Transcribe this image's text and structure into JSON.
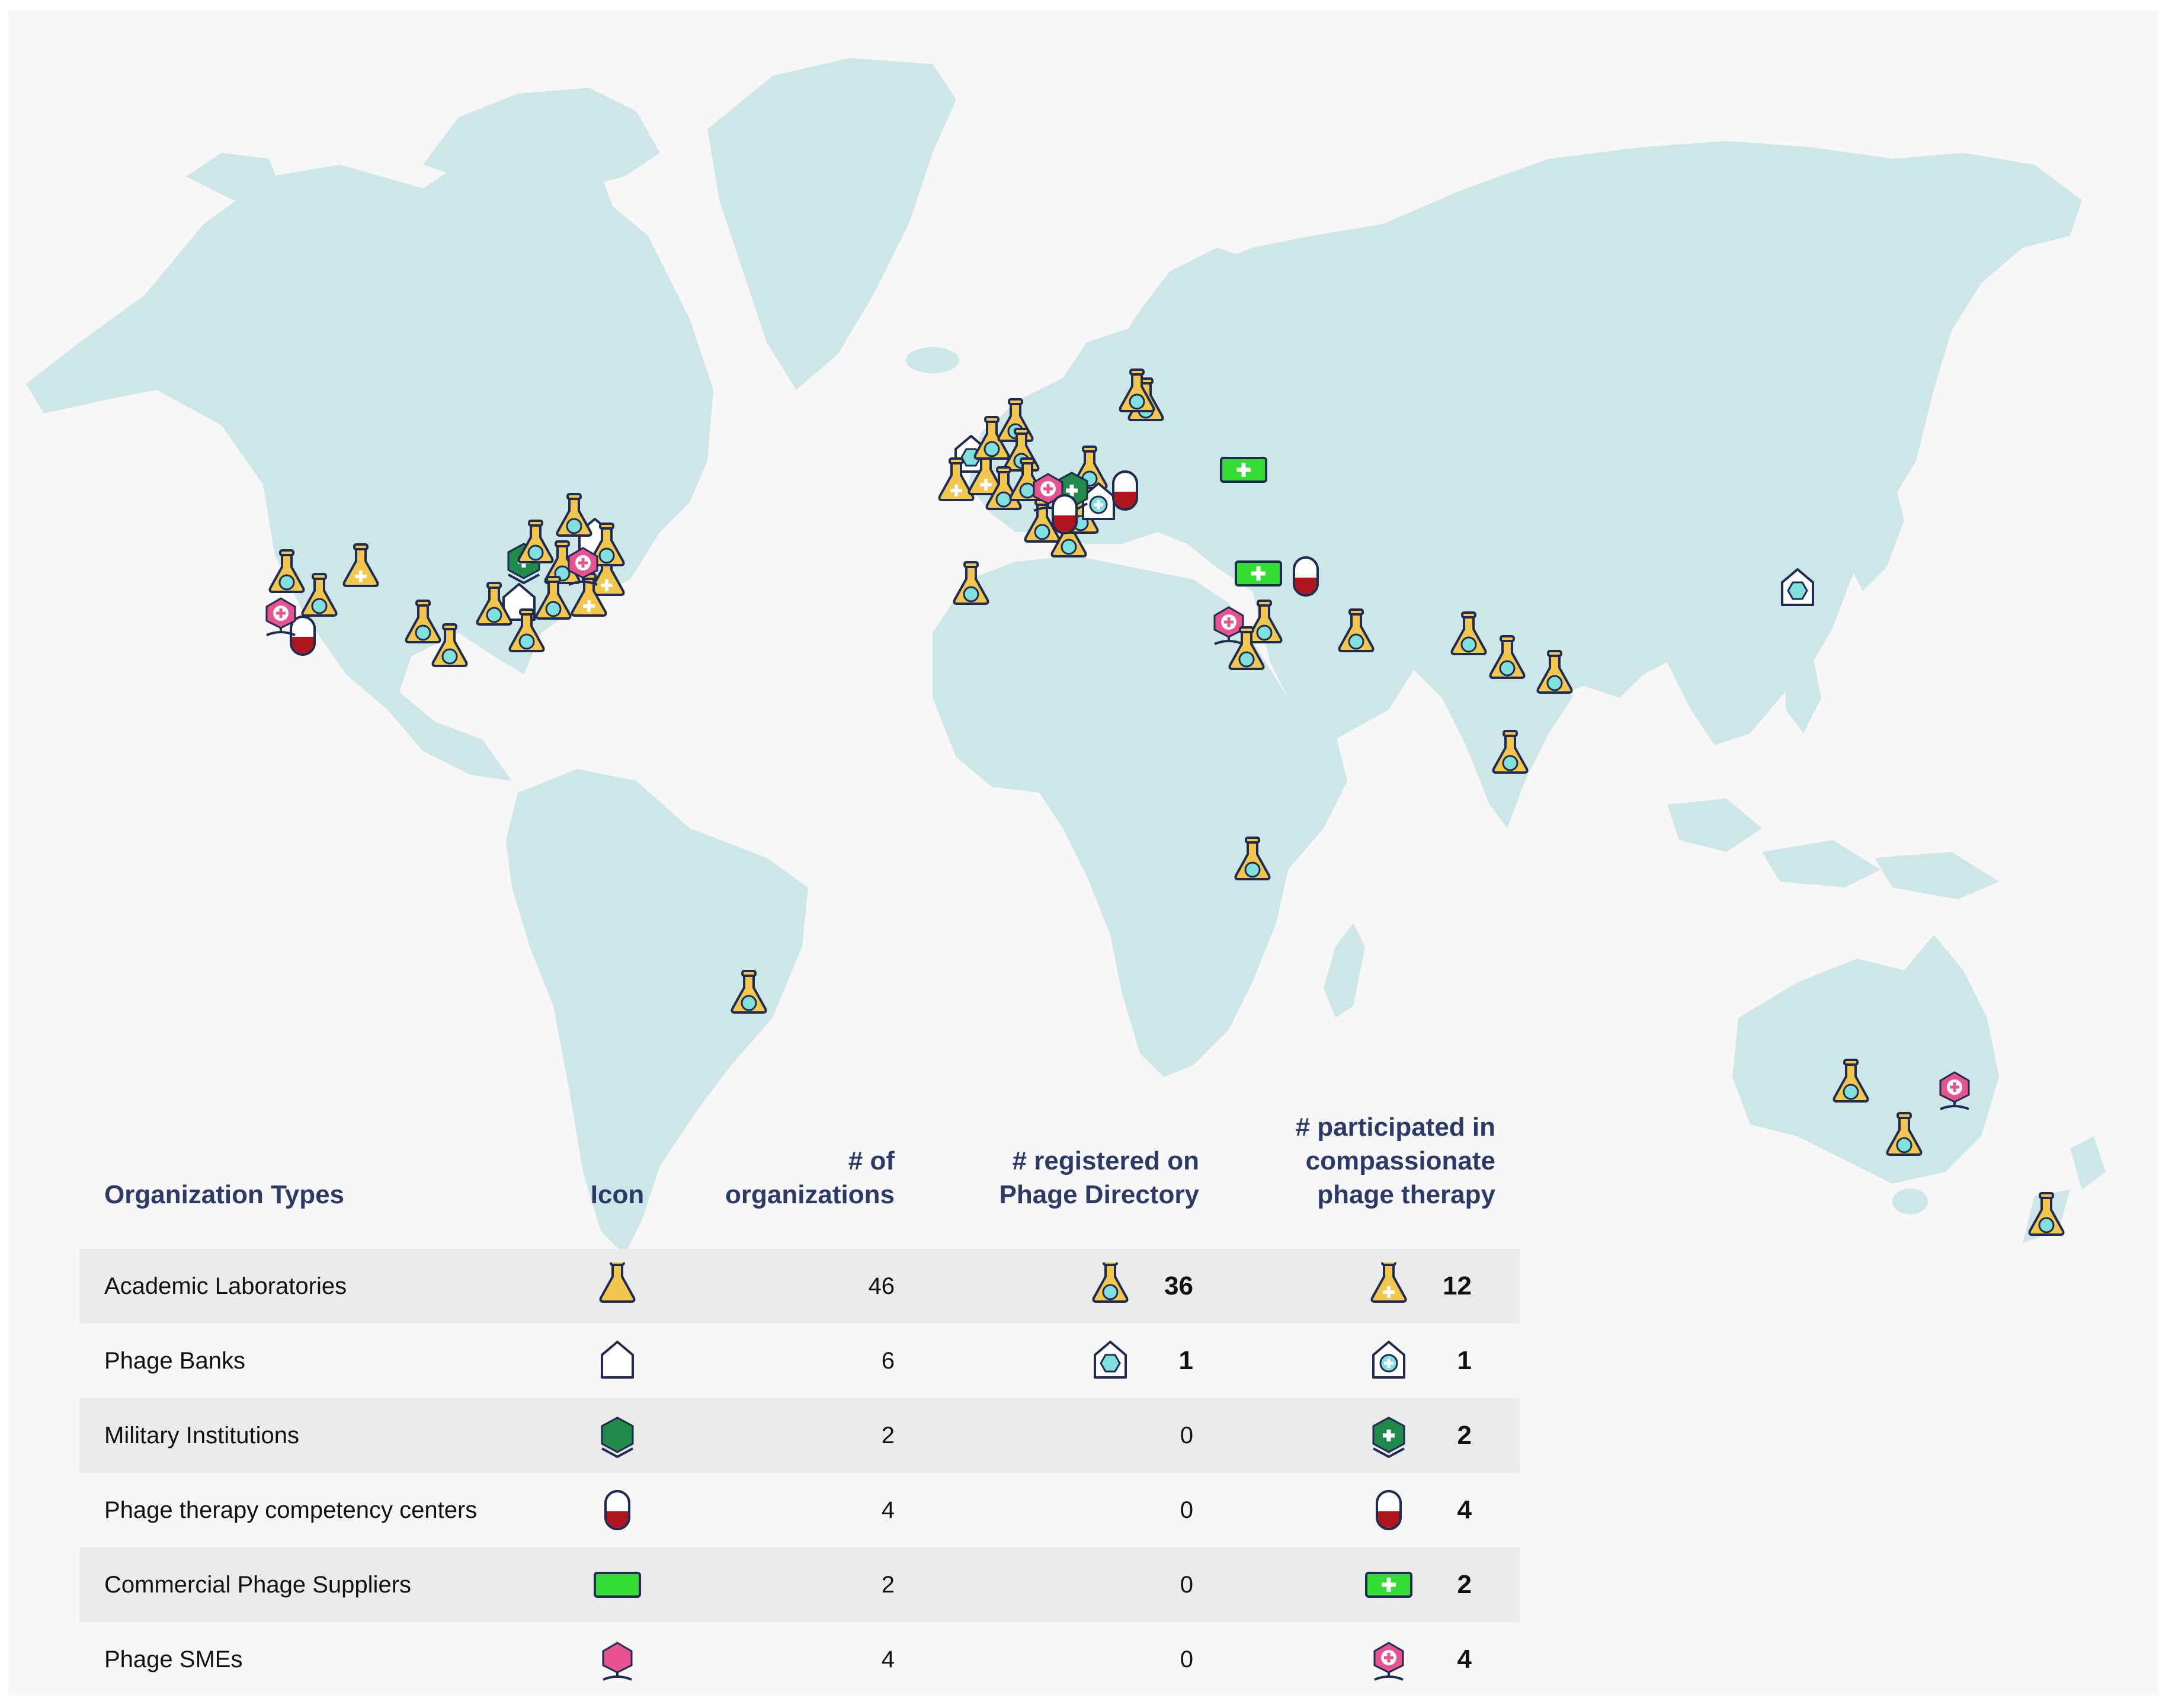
{
  "legend": {
    "headers": {
      "type": "Organization Types",
      "icon": "Icon",
      "count": [
        "# of",
        "organizations"
      ],
      "registered": [
        "# registered on",
        "Phage Directory"
      ],
      "participated": [
        "# participated in",
        "compassionate",
        "phage therapy"
      ]
    },
    "rows": [
      {
        "type": "Academic Laboratories",
        "icon": "flask-icon",
        "count": "46",
        "registered": "36",
        "registered_icon": "flask-registered-icon",
        "participated": "12",
        "participated_icon": "flask-therapy-icon"
      },
      {
        "type": "Phage Banks",
        "icon": "phage-bank-icon",
        "count": "6",
        "registered": "1",
        "registered_icon": "phage-bank-registered-icon",
        "participated": "1",
        "participated_icon": "phage-bank-therapy-icon"
      },
      {
        "type": "Military Institutions",
        "icon": "military-hexagon-icon",
        "count": "2",
        "registered": "0",
        "registered_icon": "",
        "participated": "2",
        "participated_icon": "military-therapy-icon"
      },
      {
        "type": "Phage therapy competency centers",
        "icon": "capsule-icon",
        "count": "4",
        "registered": "0",
        "registered_icon": "",
        "participated": "4",
        "participated_icon": "capsule-therapy-icon"
      },
      {
        "type": "Commercial Phage Suppliers",
        "icon": "supplier-rect-icon",
        "count": "2",
        "registered": "0",
        "registered_icon": "",
        "participated": "2",
        "participated_icon": "supplier-therapy-icon"
      },
      {
        "type": "Phage SMEs",
        "icon": "sme-pin-icon",
        "count": "4",
        "registered": "0",
        "registered_icon": "",
        "participated": "4",
        "participated_icon": "sme-therapy-icon"
      }
    ]
  },
  "colors": {
    "land": "#cde6e7",
    "background": "#f7f7f7",
    "flask": "#f3c74c",
    "flask_dot": "#7fe0de",
    "military": "#1f8a4a",
    "capsule_red": "#b0141c",
    "supplier": "#33dd33",
    "sme": "#e8538f",
    "outline": "#1f2b52",
    "header_text": "#2b3a66"
  }
}
